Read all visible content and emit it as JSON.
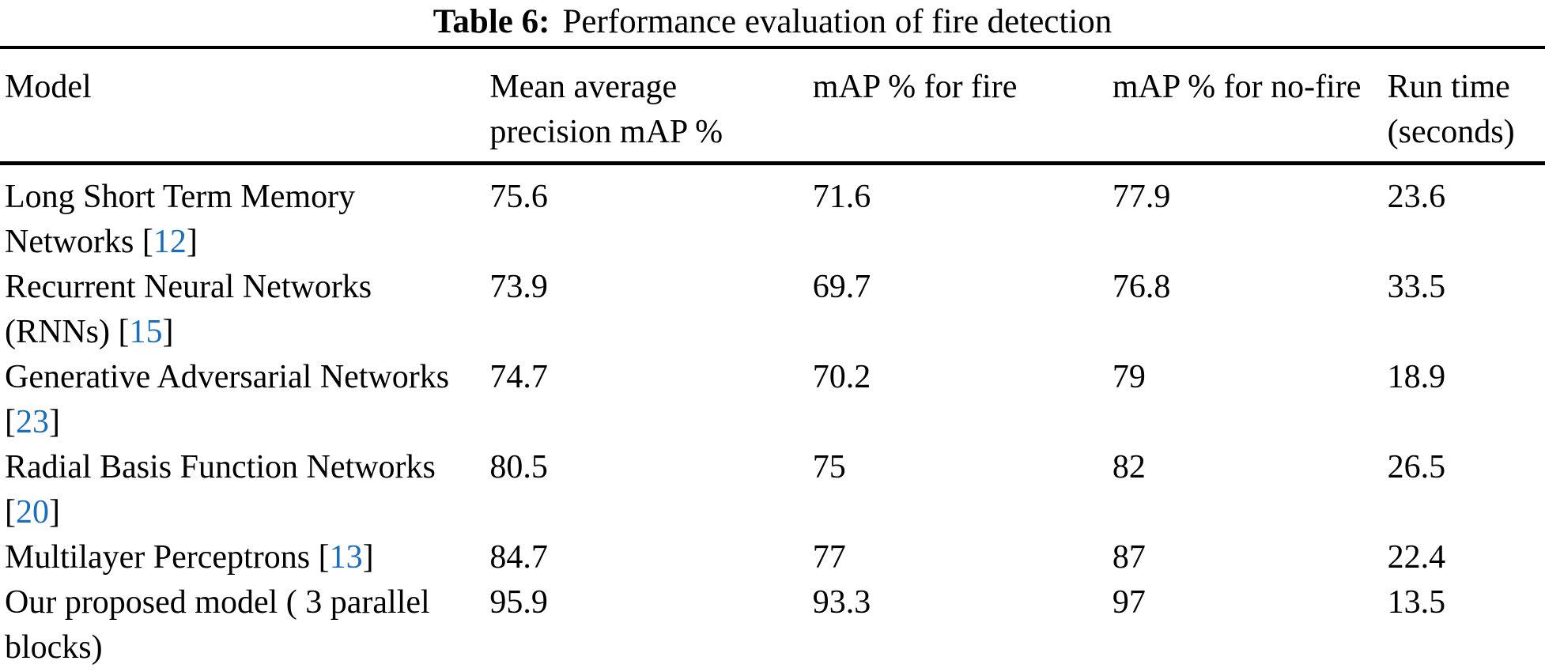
{
  "caption": {
    "label": "Table 6:",
    "text": "Performance evaluation of fire detection"
  },
  "colors": {
    "text": "#000000",
    "rule": "#000000",
    "citation": "#1b6ebe",
    "background": "#ffffff"
  },
  "table": {
    "columns": [
      "Model",
      "Mean average precision mAP %",
      "mAP % for fire",
      "mAP % for no-fire",
      "Run time (seconds)"
    ],
    "rows": [
      {
        "model": "Long Short Term Memory Networks",
        "citation": "12",
        "map": "75.6",
        "map_fire": "71.6",
        "map_nofire": "77.9",
        "runtime": "23.6"
      },
      {
        "model": "Recurrent Neural Networks (RNNs)",
        "citation": "15",
        "map": "73.9",
        "map_fire": "69.7",
        "map_nofire": "76.8",
        "runtime": "33.5"
      },
      {
        "model": "Generative Adversarial Networks",
        "citation": "23",
        "map": "74.7",
        "map_fire": "70.2",
        "map_nofire": "79",
        "runtime": "18.9"
      },
      {
        "model": "Radial Basis Function Networks",
        "citation": "20",
        "map": "80.5",
        "map_fire": "75",
        "map_nofire": "82",
        "runtime": "26.5"
      },
      {
        "model": "Multilayer Perceptrons",
        "citation": "13",
        "map": "84.7",
        "map_fire": "77",
        "map_nofire": "87",
        "runtime": "22.4"
      },
      {
        "model": "Our proposed model ( 3 parallel blocks)",
        "citation": null,
        "map": "95.9",
        "map_fire": "93.3",
        "map_nofire": "97",
        "runtime": "13.5"
      }
    ]
  }
}
